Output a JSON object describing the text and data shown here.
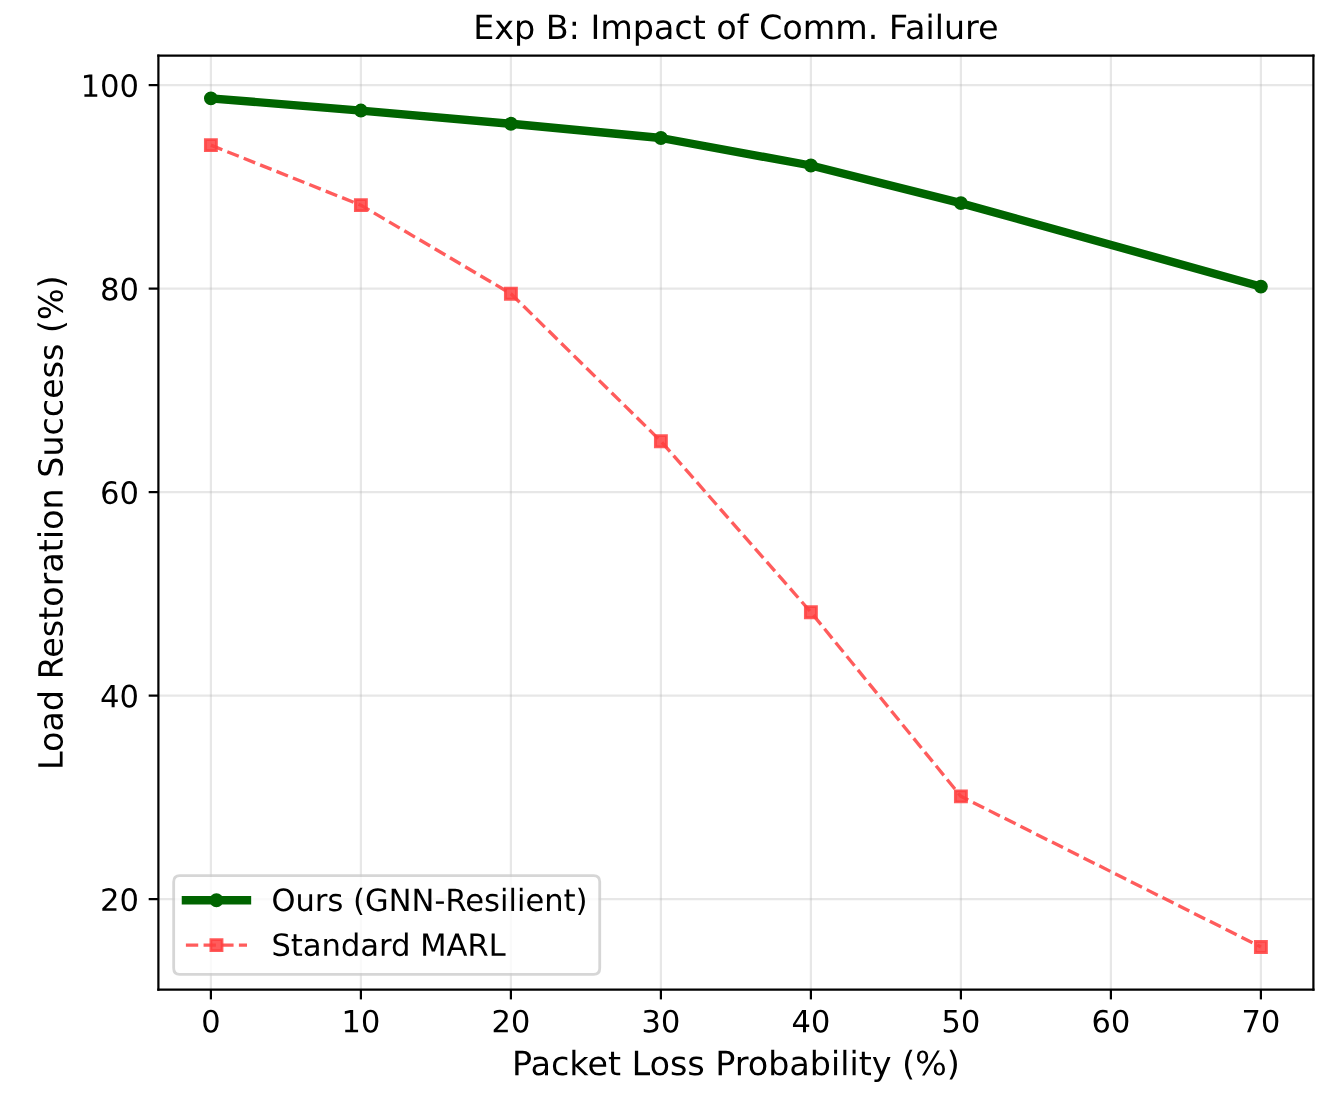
{
  "chart_data": {
    "type": "line",
    "title": "Exp B: Impact of Comm. Failure",
    "xlabel": "Packet Loss Probability (%)",
    "ylabel": "Load Restoration Success (%)",
    "x": [
      0,
      10,
      20,
      30,
      40,
      50,
      70
    ],
    "series": [
      {
        "name": "Ours (GNN-Resilient)",
        "color": "#006400",
        "values": [
          98.7,
          97.5,
          96.2,
          94.8,
          92.1,
          88.4,
          80.2
        ],
        "marker": "circle",
        "line_style": "solid"
      },
      {
        "name": "Standard MARL",
        "color": "#ff4040",
        "values": [
          94.1,
          88.2,
          79.5,
          65.0,
          48.2,
          30.1,
          15.3
        ],
        "marker": "square",
        "line_style": "dashed"
      }
    ],
    "xlim": [
      -3.5,
      73.5
    ],
    "xticks": [
      0,
      10,
      20,
      30,
      40,
      50,
      60,
      70
    ],
    "ylim": [
      11.1,
      102.9
    ],
    "yticks": [
      20,
      40,
      60,
      80,
      100
    ],
    "grid": true,
    "legend": "bottom left"
  }
}
